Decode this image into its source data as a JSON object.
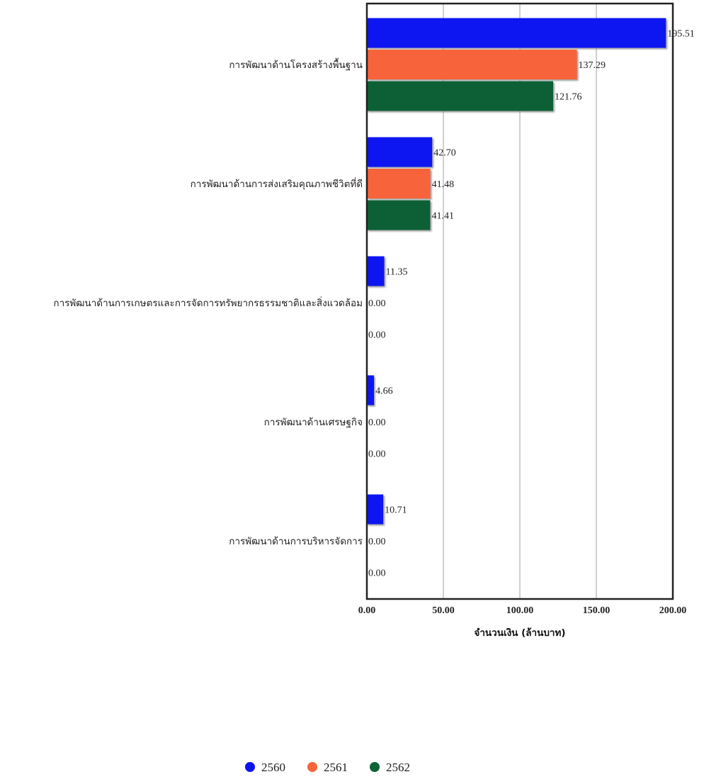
{
  "chart_data": {
    "type": "bar",
    "orientation": "horizontal",
    "categories": [
      "การพัฒนาด้านโครงสร้างพื้นฐาน",
      "การพัฒนาด้านการส่งเสริมคุณภาพชีวิตที่ดี",
      "การพัฒนาด้านการเกษตรและการจัดการทรัพยากรธรรมชาติและสิ่งแวดล้อม",
      "การพัฒนาด้านเศรษฐกิจ",
      "การพัฒนาด้านการบริหารจัดการ"
    ],
    "series": [
      {
        "name": "2560",
        "color": "#0a14f0",
        "values": [
          195.51,
          42.7,
          11.35,
          4.66,
          10.71
        ]
      },
      {
        "name": "2561",
        "color": "#f7633a",
        "values": [
          137.29,
          41.48,
          0.0,
          0.0,
          0.0
        ]
      },
      {
        "name": "2562",
        "color": "#0f6136",
        "values": [
          121.76,
          41.41,
          0.0,
          0.0,
          0.0
        ]
      }
    ],
    "value_labels": [
      [
        "195.51",
        "42.70",
        "11.35",
        "4.66",
        "10.71"
      ],
      [
        "137.29",
        "41.48",
        "0.00",
        "0.00",
        "0.00"
      ],
      [
        "121.76",
        "41.41",
        "0.00",
        "0.00",
        "0.00"
      ]
    ],
    "xlim": [
      0,
      200
    ],
    "xticks": [
      0,
      50,
      100,
      150,
      200
    ],
    "xtick_labels": [
      "0.00",
      "50.00",
      "100.00",
      "150.00",
      "200.00"
    ],
    "xlabel": "จำนวนเงิน (ล้านบาท)",
    "ylabel": "",
    "title": "",
    "grid": true,
    "legend_position": "bottom-center"
  }
}
